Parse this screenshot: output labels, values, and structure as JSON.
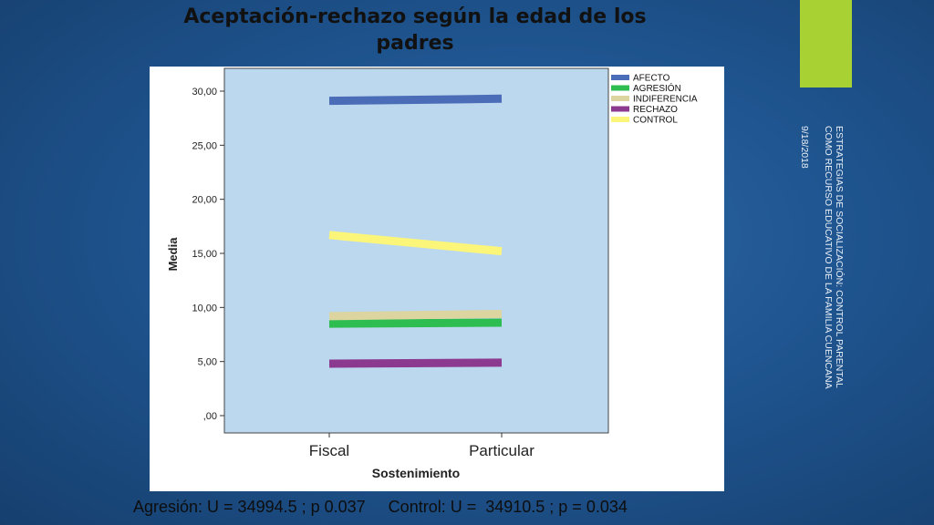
{
  "slide": {
    "title_line1": "Aceptación-rechazo según la edad de los",
    "title_line2": "padres",
    "side_text_line1": "ESTRATEGIAS DE SOCIALIZACIÓN: CONTROL PARENTAL",
    "side_text_line2": "COMO RECURSO EDUCATIVO DE LA FAMILIA CUENCANA",
    "date": "9/18/2018",
    "caption": "Agresión: U = 34994.5 ; p 0.037     Control: U =  34910.5 ; p = 0.034",
    "accent_color": "#a8d234"
  },
  "chart_data": {
    "type": "line",
    "title": "",
    "xlabel": "Sostenimiento",
    "ylabel": "Media",
    "categories": [
      "Fiscal",
      "Particular"
    ],
    "ylim": [
      0,
      30
    ],
    "yticks": [
      0,
      5,
      10,
      15,
      20,
      25,
      30
    ],
    "ytick_labels": [
      ",00",
      "5,00",
      "10,00",
      "15,00",
      "20,00",
      "25,00",
      "30,00"
    ],
    "plot_background": "#bcd8ef",
    "legend_position": "top-right",
    "series": [
      {
        "name": "AFECTO",
        "values": [
          29.1,
          29.3
        ],
        "color": "#4b6cb7"
      },
      {
        "name": "AGRESIÓN",
        "values": [
          8.5,
          8.6
        ],
        "color": "#2ebd50"
      },
      {
        "name": "INDIFERENCIA",
        "values": [
          9.2,
          9.4
        ],
        "color": "#dcd5a0"
      },
      {
        "name": "RECHAZO",
        "values": [
          4.8,
          4.9
        ],
        "color": "#8b3a8f"
      },
      {
        "name": "CONTROL",
        "values": [
          16.7,
          15.2
        ],
        "color": "#fbf57a"
      }
    ]
  }
}
